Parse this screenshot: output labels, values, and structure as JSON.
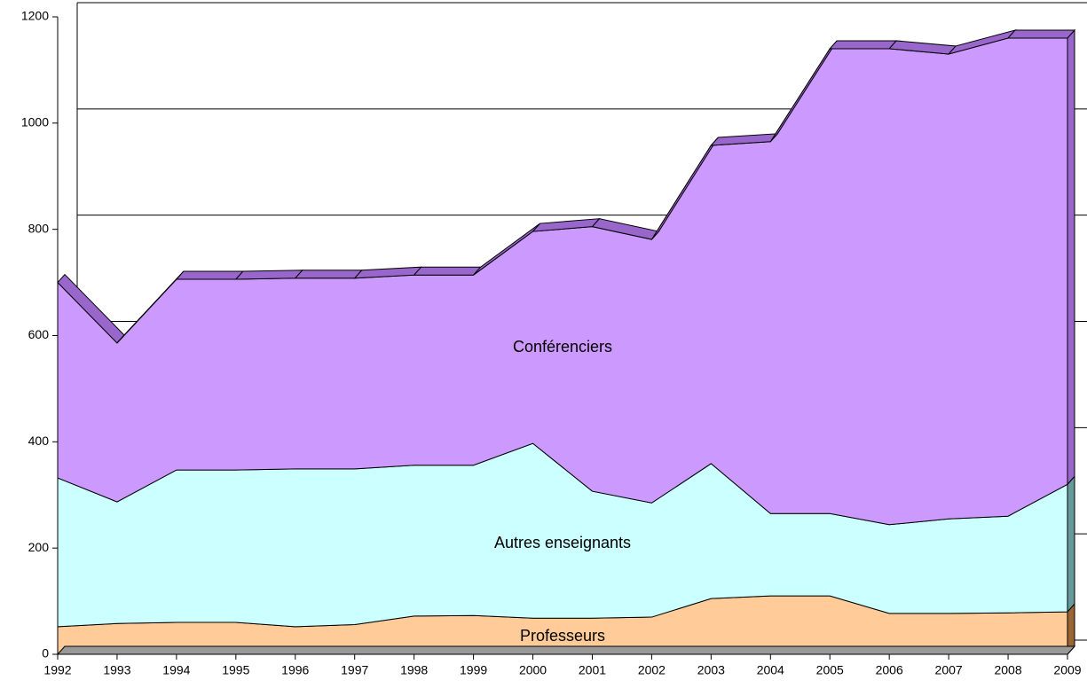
{
  "chart_data": {
    "type": "stacked_area",
    "categories": [
      "1992",
      "1993",
      "1994",
      "1995",
      "1996",
      "1997",
      "1998",
      "1999",
      "2000",
      "2001",
      "2002",
      "2003",
      "2004",
      "2005",
      "2006",
      "2007",
      "2008",
      "2009"
    ],
    "series": [
      {
        "name": "Professeurs",
        "color": "#ffcc99",
        "side_color": "#996633",
        "values": [
          52,
          58,
          60,
          60,
          52,
          56,
          72,
          73,
          68,
          68,
          70,
          105,
          110,
          110,
          77,
          77,
          78,
          80
        ]
      },
      {
        "name": "Autres enseignants",
        "color": "#ccffff",
        "side_color": "#669999",
        "values": [
          280,
          229,
          287,
          287,
          297,
          293,
          284,
          283,
          329,
          239,
          215,
          254,
          155,
          155,
          167,
          178,
          182,
          240
        ]
      },
      {
        "name": "Conférenciers",
        "color": "#cc99ff",
        "side_color": "#9966cc",
        "values": [
          368,
          299,
          359,
          359,
          359,
          359,
          358,
          358,
          399,
          498,
          496,
          599,
          700,
          875,
          896,
          875,
          900,
          840
        ]
      }
    ],
    "ylim": [
      0,
      1200
    ],
    "yticks": [
      0,
      200,
      400,
      600,
      800,
      1000,
      1200
    ],
    "grid": true
  }
}
